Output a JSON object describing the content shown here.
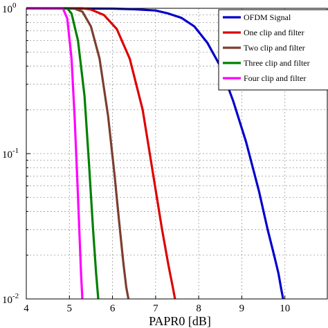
{
  "chart_data": {
    "type": "line",
    "title": "",
    "xlabel": "PAPR0 [dB]",
    "ylabel": "",
    "xlim": [
      4,
      11
    ],
    "ylim": [
      0.01,
      1
    ],
    "yscale": "log",
    "grid": true,
    "legend_position": "top-right",
    "x_ticks": [
      4,
      5,
      6,
      7,
      8,
      9,
      10
    ],
    "x_tick_labels": [
      "4",
      "5",
      "6",
      "7",
      "8",
      "9",
      "10"
    ],
    "y_ticks": [
      0.01,
      0.1,
      1
    ],
    "y_tick_labels": [
      {
        "base": "10",
        "exp": "-2"
      },
      {
        "base": "10",
        "exp": "-1"
      },
      {
        "base": "10",
        "exp": "0"
      }
    ],
    "series": [
      {
        "name": "OFDM Signal",
        "color": "#0000cc",
        "x": [
          4.0,
          6.0,
          6.5,
          7.0,
          7.3,
          7.6,
          7.9,
          8.2,
          8.5,
          8.8,
          9.1,
          9.4,
          9.6,
          9.75,
          9.85,
          9.92,
          9.96
        ],
        "y": [
          1.0,
          0.995,
          0.985,
          0.965,
          0.92,
          0.86,
          0.75,
          0.58,
          0.4,
          0.23,
          0.12,
          0.055,
          0.03,
          0.02,
          0.015,
          0.0115,
          0.01
        ]
      },
      {
        "name": "One clip and filter",
        "color": "#dd0000",
        "x": [
          4.0,
          5.3,
          5.5,
          5.8,
          6.1,
          6.4,
          6.7,
          6.95,
          7.15,
          7.3,
          7.4,
          7.45
        ],
        "y": [
          1.0,
          1.0,
          0.98,
          0.9,
          0.72,
          0.45,
          0.2,
          0.07,
          0.03,
          0.017,
          0.012,
          0.01
        ]
      },
      {
        "name": "Two clip and filter",
        "color": "#7b3f2f",
        "x": [
          4.0,
          5.1,
          5.3,
          5.5,
          5.7,
          5.9,
          6.05,
          6.15,
          6.25,
          6.32,
          6.37
        ],
        "y": [
          1.0,
          1.0,
          0.95,
          0.75,
          0.45,
          0.18,
          0.07,
          0.035,
          0.018,
          0.012,
          0.01
        ]
      },
      {
        "name": "Three clip and filter",
        "color": "#008000",
        "x": [
          4.0,
          4.95,
          5.05,
          5.2,
          5.35,
          5.45,
          5.55,
          5.62,
          5.67
        ],
        "y": [
          1.0,
          1.0,
          0.92,
          0.6,
          0.25,
          0.09,
          0.03,
          0.015,
          0.01
        ]
      },
      {
        "name": "Four clip and filter",
        "color": "#ff00ff",
        "x": [
          4.0,
          4.85,
          4.95,
          5.05,
          5.12,
          5.18,
          5.23,
          5.27,
          5.3
        ],
        "y": [
          1.0,
          1.0,
          0.85,
          0.45,
          0.18,
          0.07,
          0.03,
          0.015,
          0.01
        ]
      }
    ]
  }
}
